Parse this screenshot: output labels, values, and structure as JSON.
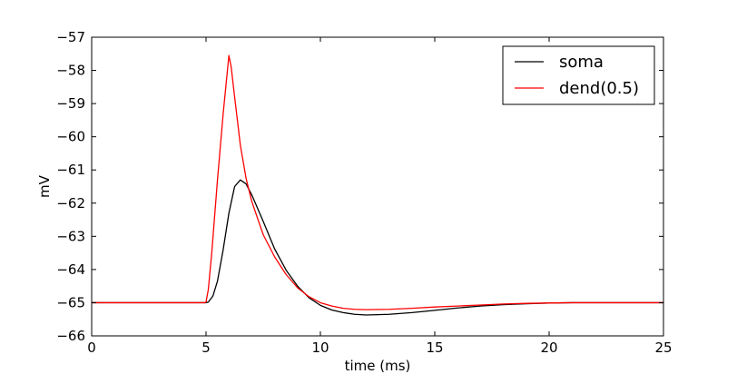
{
  "chart_data": {
    "type": "line",
    "title": "",
    "xlabel": "time (ms)",
    "ylabel": "mV",
    "xlim": [
      0,
      25
    ],
    "ylim": [
      -66,
      -57
    ],
    "xticks": [
      0,
      5,
      10,
      15,
      20,
      25
    ],
    "yticks": [
      -66,
      -65,
      -64,
      -63,
      -62,
      -61,
      -60,
      -59,
      -58,
      -57
    ],
    "xtick_labels": [
      "0",
      "5",
      "10",
      "15",
      "20",
      "25"
    ],
    "ytick_labels": [
      "−66",
      "−65",
      "−64",
      "−63",
      "−62",
      "−61",
      "−60",
      "−59",
      "−58",
      "−57"
    ],
    "grid": false,
    "legend_position": "top-right",
    "series": [
      {
        "name": "soma",
        "color": "#000000",
        "x": [
          0,
          4.9,
          5.0,
          5.1,
          5.3,
          5.5,
          5.75,
          6.0,
          6.25,
          6.5,
          6.75,
          7.0,
          7.5,
          8.0,
          8.5,
          9.0,
          9.5,
          10.0,
          10.5,
          11.0,
          11.5,
          12.0,
          13.0,
          14.0,
          15.0,
          16.0,
          17.0,
          18.0,
          19.0,
          20.0,
          21.0,
          22.0,
          23.0,
          24.0,
          25.0
        ],
        "values": [
          -65.0,
          -65.0,
          -65.0,
          -64.98,
          -64.8,
          -64.35,
          -63.4,
          -62.3,
          -61.5,
          -61.3,
          -61.42,
          -61.75,
          -62.55,
          -63.38,
          -64.02,
          -64.5,
          -64.85,
          -65.08,
          -65.22,
          -65.3,
          -65.35,
          -65.37,
          -65.35,
          -65.3,
          -65.23,
          -65.16,
          -65.1,
          -65.06,
          -65.03,
          -65.01,
          -65.0,
          -65.0,
          -65.0,
          -65.0,
          -65.0
        ]
      },
      {
        "name": "dend(0.5)",
        "color": "#ff0000",
        "x": [
          0,
          4.95,
          5.0,
          5.1,
          5.25,
          5.5,
          5.75,
          6.0,
          6.1,
          6.25,
          6.5,
          6.75,
          7.0,
          7.5,
          8.0,
          8.5,
          9.0,
          9.5,
          10.0,
          10.5,
          11.0,
          11.5,
          12.0,
          13.0,
          14.0,
          15.0,
          16.0,
          17.0,
          18.0,
          19.0,
          20.0,
          21.0,
          22.0,
          23.0,
          24.0,
          25.0
        ],
        "values": [
          -65.0,
          -65.0,
          -64.98,
          -64.6,
          -63.5,
          -61.3,
          -59.3,
          -57.55,
          -57.9,
          -58.8,
          -60.25,
          -61.25,
          -61.95,
          -62.95,
          -63.62,
          -64.15,
          -64.55,
          -64.82,
          -65.0,
          -65.1,
          -65.17,
          -65.2,
          -65.21,
          -65.2,
          -65.17,
          -65.13,
          -65.1,
          -65.07,
          -65.04,
          -65.02,
          -65.01,
          -65.0,
          -65.0,
          -65.0,
          -65.0,
          -65.0
        ]
      }
    ]
  }
}
